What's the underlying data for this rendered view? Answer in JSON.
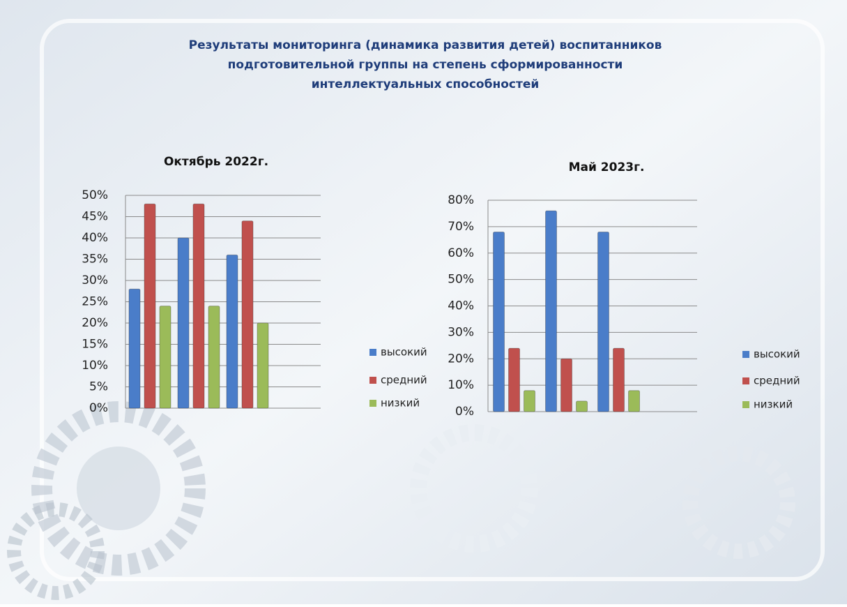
{
  "title": [
    "Результаты мониторинга (динамика развития детей) воспитанников",
    "подготовительной группы на степень сформированности",
    "интеллектуальных способностей"
  ],
  "chart_data": [
    {
      "type": "bar",
      "title": "Октябрь 2022г.",
      "categories": [
        null,
        null,
        null
      ],
      "series": [
        {
          "name": "высокий",
          "color": "#4a7dc9",
          "values": [
            28,
            40,
            36
          ]
        },
        {
          "name": "средний",
          "color": "#c0504d",
          "values": [
            48,
            48,
            44
          ]
        },
        {
          "name": "низкий",
          "color": "#9bbb59",
          "values": [
            24,
            24,
            20
          ]
        }
      ],
      "ylim": [
        0,
        50
      ],
      "yticks": [
        {
          "value": 0,
          "label": "0%"
        },
        {
          "value": 5,
          "label": "5%"
        },
        {
          "value": 10,
          "label": "10%"
        },
        {
          "value": 15,
          "label": "15%"
        },
        {
          "value": 20,
          "label": "20%"
        },
        {
          "value": 25,
          "label": "25%"
        },
        {
          "value": 30,
          "label": "30%"
        },
        {
          "value": 35,
          "label": "35%"
        },
        {
          "value": 40,
          "label": "40%"
        },
        {
          "value": 45,
          "label": "45%"
        },
        {
          "value": 50,
          "label": "50%"
        }
      ],
      "grid": true,
      "legend": "right"
    },
    {
      "type": "bar",
      "title": "Май 2023г.",
      "categories": [
        null,
        null,
        null
      ],
      "series": [
        {
          "name": "высокий",
          "color": "#4a7dc9",
          "values": [
            68,
            76,
            68
          ]
        },
        {
          "name": "средний",
          "color": "#c0504d",
          "values": [
            24,
            20,
            24
          ]
        },
        {
          "name": "низкий",
          "color": "#9bbb59",
          "values": [
            8,
            4,
            8
          ]
        }
      ],
      "ylim": [
        0,
        80
      ],
      "yticks": [
        {
          "value": 0,
          "label": "0%"
        },
        {
          "value": 10,
          "label": "10%"
        },
        {
          "value": 20,
          "label": "20%"
        },
        {
          "value": 30,
          "label": "30%"
        },
        {
          "value": 40,
          "label": "40%"
        },
        {
          "value": 50,
          "label": "50%"
        },
        {
          "value": 60,
          "label": "60%"
        },
        {
          "value": 70,
          "label": "70%"
        },
        {
          "value": 80,
          "label": "80%"
        }
      ],
      "grid": true,
      "legend": "right"
    }
  ]
}
